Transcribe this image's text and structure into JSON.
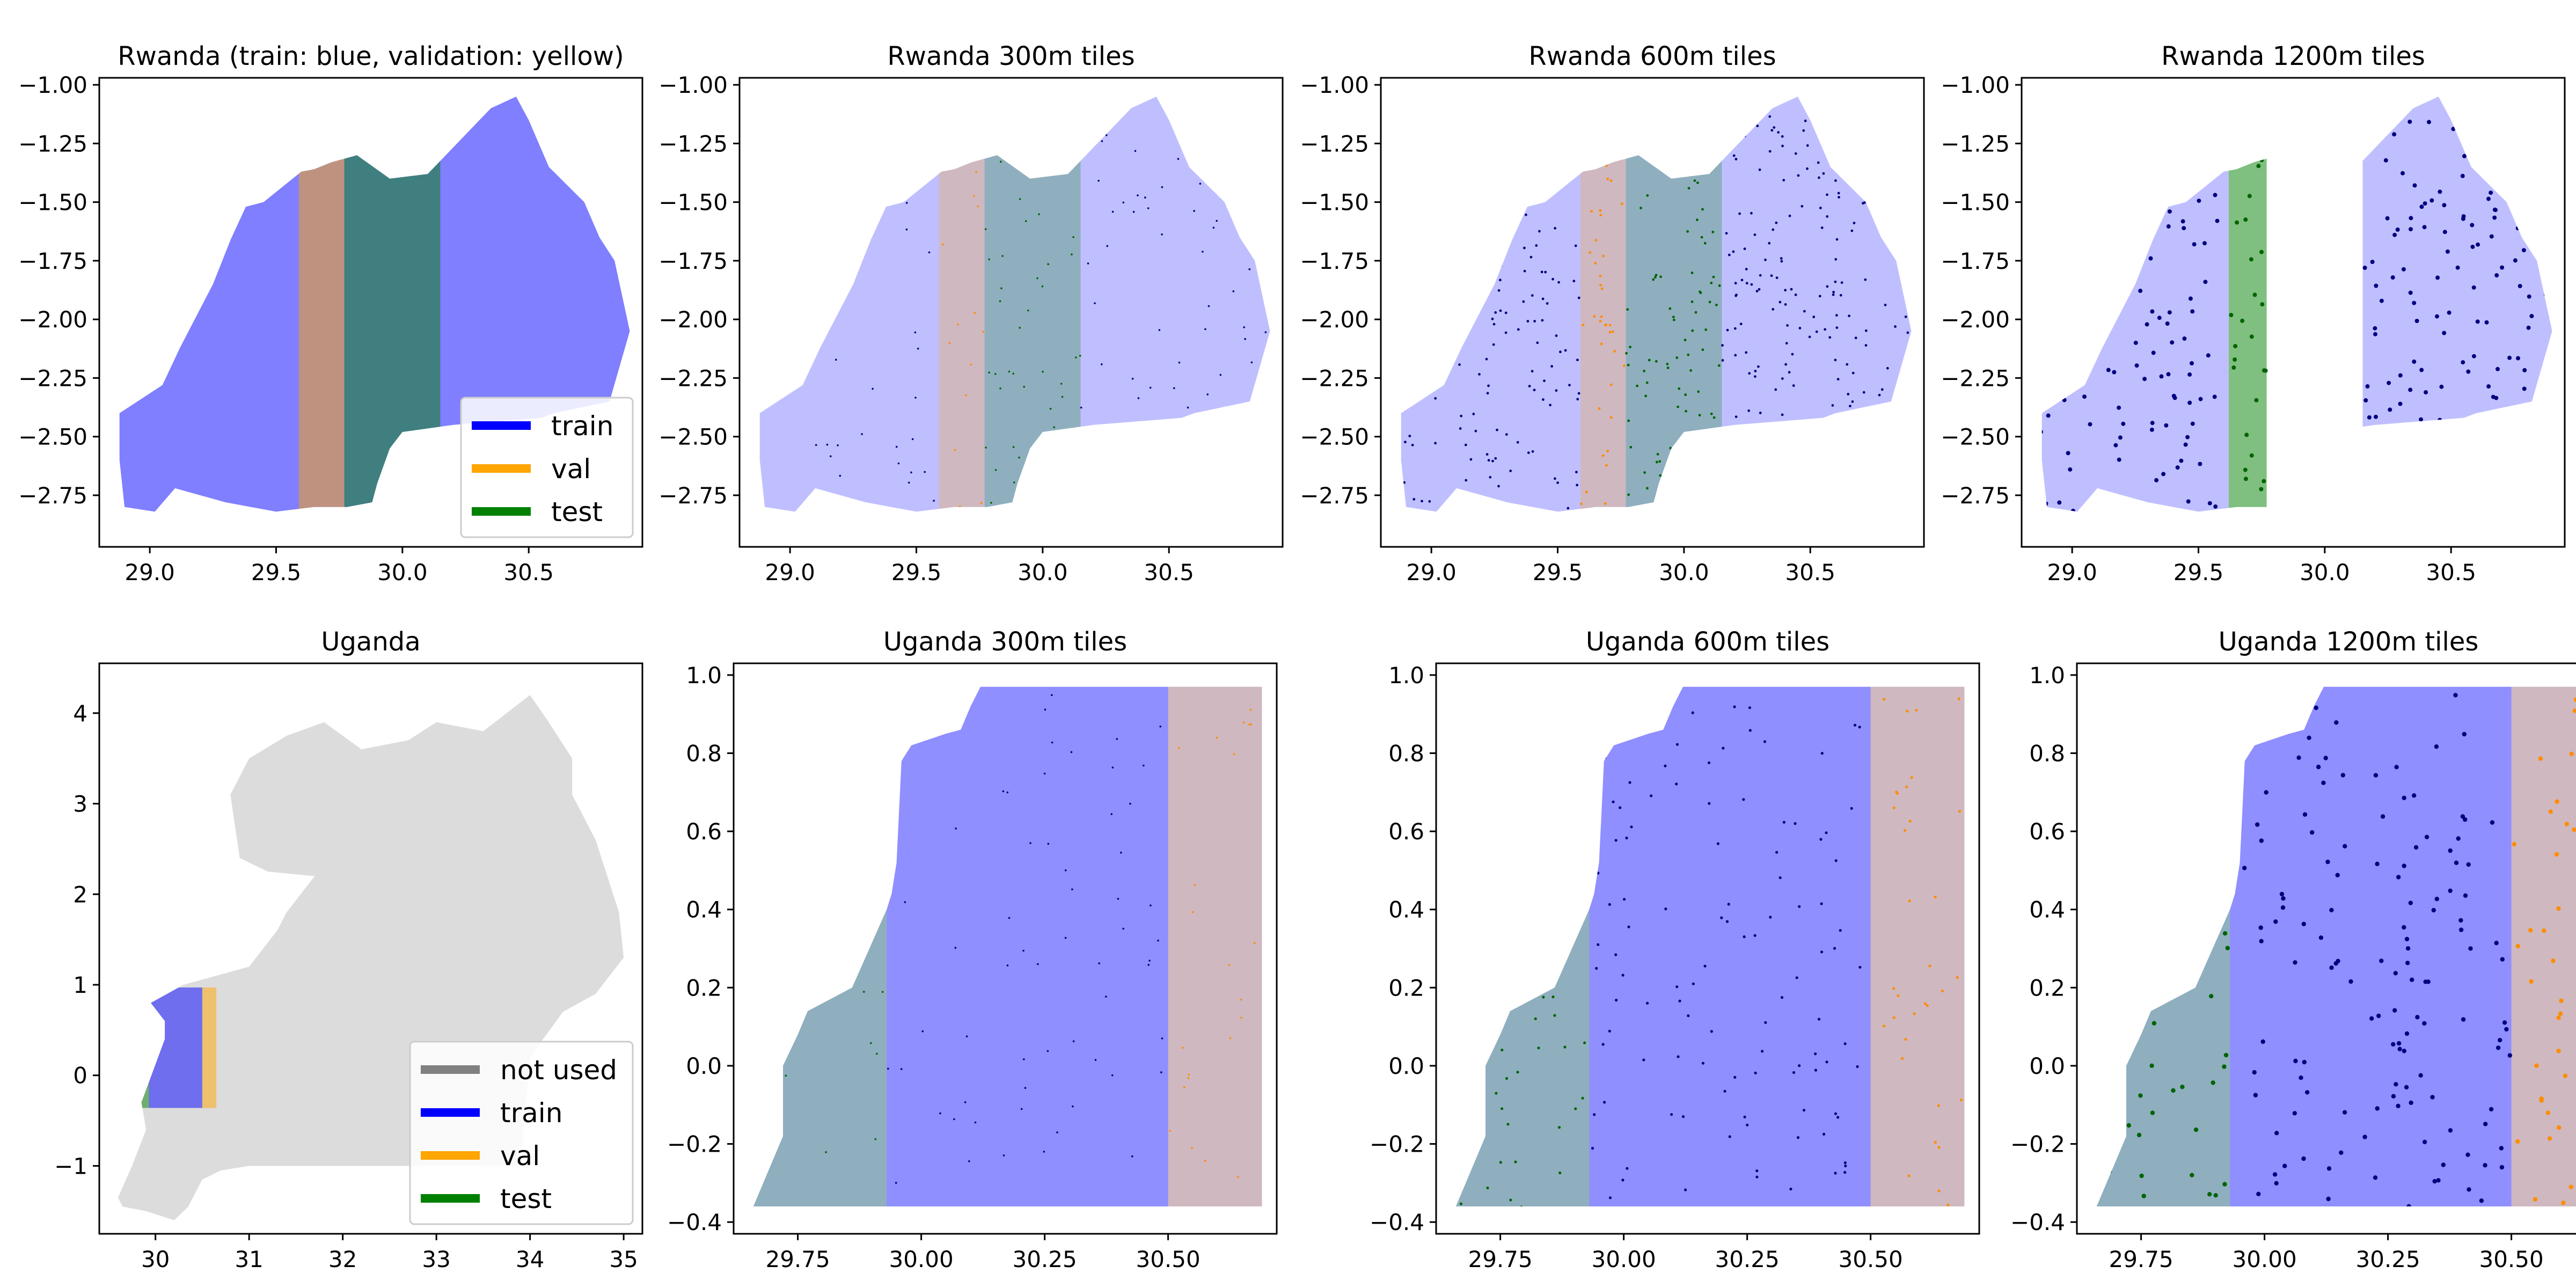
{
  "colors": {
    "train": "#0000ff",
    "val": "#ffa500",
    "test": "#008000",
    "not_used": "#808080",
    "country_fill": "#dcdcdc",
    "train_point": "#000080",
    "val_point": "#ff8c00",
    "test_point": "#006400"
  },
  "chart_data": [
    {
      "type": "map-split",
      "title": "Rwanda (train: blue, validation: yellow)",
      "xlim": [
        28.8,
        30.95
      ],
      "ylim": [
        -2.97,
        -0.97
      ],
      "xticks": [
        29.0,
        29.5,
        30.0,
        30.5
      ],
      "xtick_labels": [
        "29.0",
        "29.5",
        "30.0",
        "30.5"
      ],
      "yticks": [
        -1.0,
        -1.25,
        -1.5,
        -1.75,
        -2.0,
        -2.25,
        -2.5,
        -2.75
      ],
      "ytick_labels": [
        "−1.00",
        "−1.25",
        "−1.50",
        "−1.75",
        "−2.00",
        "−2.25",
        "−2.50",
        "−2.75"
      ],
      "splits": {
        "val": [
          29.59,
          29.77
        ],
        "test": [
          29.77,
          30.15
        ]
      },
      "legend": {
        "position": "lower right",
        "entries": [
          {
            "label": "train",
            "color": "#0000ff"
          },
          {
            "label": "val",
            "color": "#ffa500"
          },
          {
            "label": "test",
            "color": "#008000"
          }
        ]
      }
    },
    {
      "type": "map-split-scatter",
      "title": "Rwanda 300m tiles",
      "xlim": [
        28.8,
        30.95
      ],
      "ylim": [
        -2.97,
        -0.97
      ],
      "xticks": [
        29.0,
        29.5,
        30.0,
        30.5
      ],
      "xtick_labels": [
        "29.0",
        "29.5",
        "30.0",
        "30.5"
      ],
      "yticks": [
        -1.0,
        -1.25,
        -1.5,
        -1.75,
        -2.0,
        -2.25,
        -2.5,
        -2.75
      ],
      "ytick_labels": [
        "−1.00",
        "−1.25",
        "−1.50",
        "−1.75",
        "−2.00",
        "−2.25",
        "−2.50",
        "−2.75"
      ],
      "splits": {
        "val": [
          29.59,
          29.77
        ],
        "test": [
          29.77,
          30.15
        ]
      }
    },
    {
      "type": "map-split-scatter",
      "title": "Rwanda 600m tiles",
      "xlim": [
        28.8,
        30.95
      ],
      "ylim": [
        -2.97,
        -0.97
      ],
      "xticks": [
        29.0,
        29.5,
        30.0,
        30.5
      ],
      "xtick_labels": [
        "29.0",
        "29.5",
        "30.0",
        "30.5"
      ],
      "yticks": [
        -1.0,
        -1.25,
        -1.5,
        -1.75,
        -2.0,
        -2.25,
        -2.5,
        -2.75
      ],
      "ytick_labels": [
        "−1.00",
        "−1.25",
        "−1.50",
        "−1.75",
        "−2.00",
        "−2.25",
        "−2.50",
        "−2.75"
      ],
      "splits": {
        "val": [
          29.59,
          29.77
        ],
        "test": [
          29.77,
          30.15
        ]
      }
    },
    {
      "type": "map-split-scatter",
      "title": "Rwanda 1200m tiles",
      "xlim": [
        28.8,
        30.95
      ],
      "ylim": [
        -2.97,
        -0.97
      ],
      "xticks": [
        29.0,
        29.5,
        30.0,
        30.5
      ],
      "xtick_labels": [
        "29.0",
        "29.5",
        "30.0",
        "30.5"
      ],
      "yticks": [
        -1.0,
        -1.25,
        -1.5,
        -1.75,
        -2.0,
        -2.25,
        -2.5,
        -2.75
      ],
      "ytick_labels": [
        "−1.00",
        "−1.25",
        "−1.50",
        "−1.75",
        "−2.00",
        "−2.25",
        "−2.50",
        "−2.75"
      ],
      "splits": {
        "test": [
          29.62,
          29.77
        ]
      }
    },
    {
      "type": "map-split",
      "title": "Uganda",
      "xlim": [
        29.4,
        35.2
      ],
      "ylim": [
        -1.75,
        4.55
      ],
      "xticks": [
        30,
        31,
        32,
        33,
        34,
        35
      ],
      "xtick_labels": [
        "30",
        "31",
        "32",
        "33",
        "34",
        "35"
      ],
      "yticks": [
        -1,
        0,
        1,
        2,
        3,
        4
      ],
      "ytick_labels": [
        "−1",
        "0",
        "1",
        "2",
        "3",
        "4"
      ],
      "selected_box": {
        "x": [
          29.7,
          30.65
        ],
        "y": [
          -0.36,
          0.97
        ]
      },
      "splits": {
        "test": [
          29.7,
          29.93
        ],
        "train": [
          29.93,
          30.5
        ],
        "val": [
          30.5,
          30.65
        ]
      },
      "legend": {
        "position": "lower right",
        "entries": [
          {
            "label": "not used",
            "color": "#808080"
          },
          {
            "label": "train",
            "color": "#0000ff"
          },
          {
            "label": "val",
            "color": "#ffa500"
          },
          {
            "label": "test",
            "color": "#008000"
          }
        ]
      }
    },
    {
      "type": "map-split-scatter",
      "title": "Uganda 300m tiles",
      "xlim": [
        29.62,
        30.72
      ],
      "ylim": [
        -0.43,
        1.03
      ],
      "xticks": [
        29.75,
        30.0,
        30.25,
        30.5
      ],
      "xtick_labels": [
        "29.75",
        "30.00",
        "30.25",
        "30.50"
      ],
      "yticks": [
        -0.4,
        -0.2,
        0.0,
        0.2,
        0.4,
        0.6,
        0.8,
        1.0
      ],
      "ytick_labels": [
        "−0.4",
        "−0.2",
        "0.0",
        "0.2",
        "0.4",
        "0.6",
        "0.8",
        "1.0"
      ],
      "splits": {
        "test": [
          29.66,
          29.93
        ],
        "train": [
          29.93,
          30.5
        ],
        "val": [
          30.5,
          30.69
        ]
      }
    },
    {
      "type": "map-split-scatter",
      "title": "Uganda 600m tiles",
      "xlim": [
        29.62,
        30.72
      ],
      "ylim": [
        -0.43,
        1.03
      ],
      "xticks": [
        29.75,
        30.0,
        30.25,
        30.5
      ],
      "xtick_labels": [
        "29.75",
        "30.00",
        "30.25",
        "30.50"
      ],
      "yticks": [
        -0.4,
        -0.2,
        0.0,
        0.2,
        0.4,
        0.6,
        0.8,
        1.0
      ],
      "ytick_labels": [
        "−0.4",
        "−0.2",
        "0.0",
        "0.2",
        "0.4",
        "0.6",
        "0.8",
        "1.0"
      ],
      "splits": {
        "test": [
          29.66,
          29.93
        ],
        "train": [
          29.93,
          30.5
        ],
        "val": [
          30.5,
          30.69
        ]
      }
    },
    {
      "type": "map-split-scatter",
      "title": "Uganda 1200m tiles",
      "xlim": [
        29.62,
        30.72
      ],
      "ylim": [
        -0.43,
        1.03
      ],
      "xticks": [
        29.75,
        30.0,
        30.25,
        30.5
      ],
      "xtick_labels": [
        "29.75",
        "30.00",
        "30.25",
        "30.50"
      ],
      "yticks": [
        -0.4,
        -0.2,
        0.0,
        0.2,
        0.4,
        0.6,
        0.8,
        1.0
      ],
      "ytick_labels": [
        "−0.4",
        "−0.2",
        "0.0",
        "0.2",
        "0.4",
        "0.6",
        "0.8",
        "1.0"
      ],
      "splits": {
        "test": [
          29.66,
          29.93
        ],
        "train": [
          29.93,
          30.5
        ],
        "val": [
          30.5,
          30.69
        ]
      }
    }
  ]
}
